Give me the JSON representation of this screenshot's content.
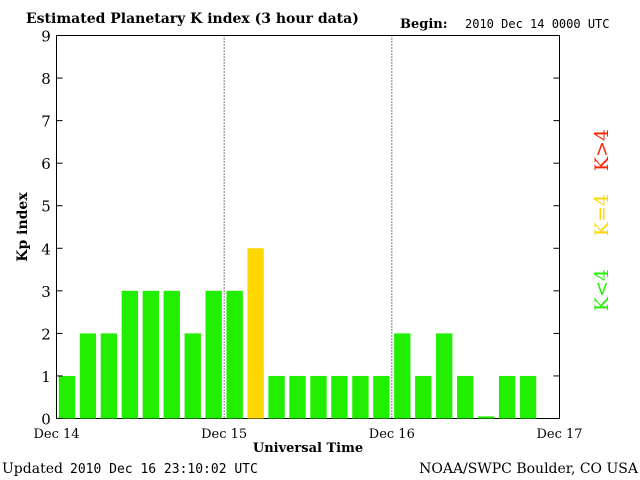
{
  "header": {
    "title": "Estimated Planetary K index (3 hour data)",
    "begin_label": "Begin:",
    "begin_value": "2010 Dec 14 0000 UTC"
  },
  "footer": {
    "updated_label": "Updated",
    "updated_value": "2010 Dec 16 23:10:02 UTC",
    "source": "NOAA/SWPC Boulder, CO USA"
  },
  "legend": {
    "high": {
      "text": "K>4",
      "color": "#ff2200"
    },
    "equal": {
      "text": "K=4",
      "color": "#ffd700"
    },
    "low": {
      "text": "K<4",
      "color": "#22ee00"
    }
  },
  "chart_data": {
    "type": "bar",
    "title": "Estimated Planetary K index (3 hour data)",
    "xlabel": "Universal Time",
    "ylabel": "Kp index",
    "ylim": [
      0,
      9
    ],
    "yticks": [
      0,
      1,
      2,
      3,
      4,
      5,
      6,
      7,
      8,
      9
    ],
    "x_tick_labels": [
      "Dec 14",
      "Dec 15",
      "Dec 16",
      "Dec 17"
    ],
    "interval_hours": 3,
    "values": [
      1,
      2,
      2,
      3,
      3,
      3,
      2,
      3,
      3,
      4,
      1,
      1,
      1,
      1,
      1,
      1,
      2,
      1,
      2,
      1,
      0.05,
      1,
      1
    ],
    "grid": false,
    "day_separators": "dotted vertical lines at Dec 15 and Dec 16",
    "colors": {
      "below_4": "#22ee00",
      "equal_4": "#ffd700",
      "above_4": "#ff2200"
    }
  }
}
